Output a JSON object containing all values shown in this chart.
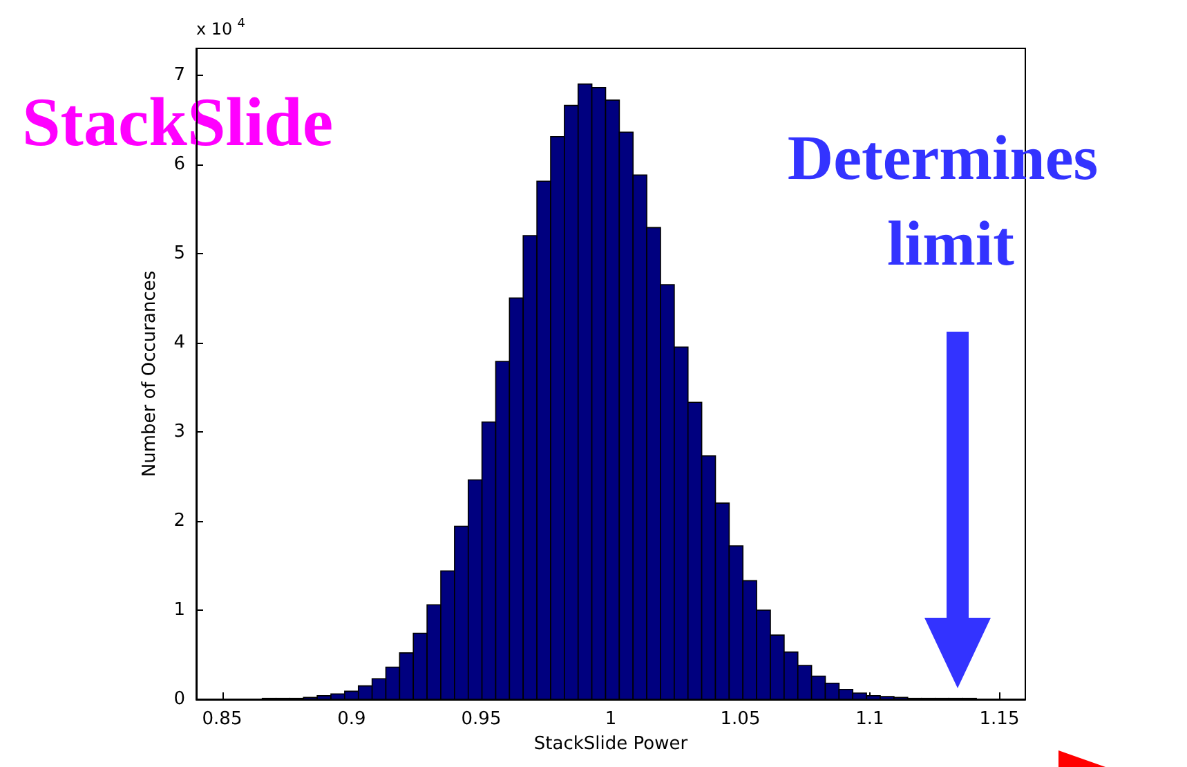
{
  "chart_data": {
    "type": "histogram",
    "xlabel": "StackSlide Power",
    "ylabel": "Number of Occurances",
    "color": "#00007f",
    "bins": [
      0.8655,
      0.8708,
      0.8761,
      0.8814,
      0.8867,
      0.892,
      0.8973,
      0.9026,
      0.9079,
      0.9132,
      0.9185,
      0.9238,
      0.9291,
      0.9344,
      0.9397,
      0.945,
      0.9503,
      0.9556,
      0.9609,
      0.9662,
      0.9715,
      0.9768,
      0.9821,
      0.9874,
      0.9927,
      0.998,
      1.0033,
      1.0086,
      1.0139,
      1.0192,
      1.0245,
      1.0298,
      1.0351,
      1.0404,
      1.0457,
      1.051,
      1.0563,
      1.0616,
      1.0669,
      1.0722,
      1.0775,
      1.0828,
      1.0881,
      1.0934,
      1.0987,
      1.104,
      1.1093,
      1.1146,
      1.1199,
      1.1252,
      1.1305,
      1.1358,
      1.1411
    ],
    "values": [
      0.01,
      0.01,
      0.01,
      0.02,
      0.04,
      0.06,
      0.09,
      0.15,
      0.23,
      0.36,
      0.52,
      0.74,
      1.06,
      1.44,
      1.94,
      2.46,
      3.11,
      3.79,
      4.5,
      5.2,
      5.81,
      6.31,
      6.66,
      6.9,
      6.86,
      6.72,
      6.36,
      5.88,
      5.29,
      4.65,
      3.95,
      3.33,
      2.73,
      2.2,
      1.72,
      1.33,
      1.0,
      0.72,
      0.53,
      0.38,
      0.26,
      0.18,
      0.11,
      0.07,
      0.04,
      0.03,
      0.02,
      0.01,
      0.01,
      0.01,
      0.01,
      0.01
    ],
    "xlim": [
      0.84,
      1.16
    ],
    "xticks": [
      0.85,
      0.9,
      0.95,
      1,
      1.05,
      1.1,
      1.15
    ],
    "ylim": [
      0,
      7.3
    ],
    "yticks": [
      0,
      1,
      2,
      3,
      4,
      5,
      6,
      7
    ],
    "grid": false,
    "annotations": [
      "x 10$^{4}$",
      "StackSlide",
      "Determines limit"
    ]
  }
}
